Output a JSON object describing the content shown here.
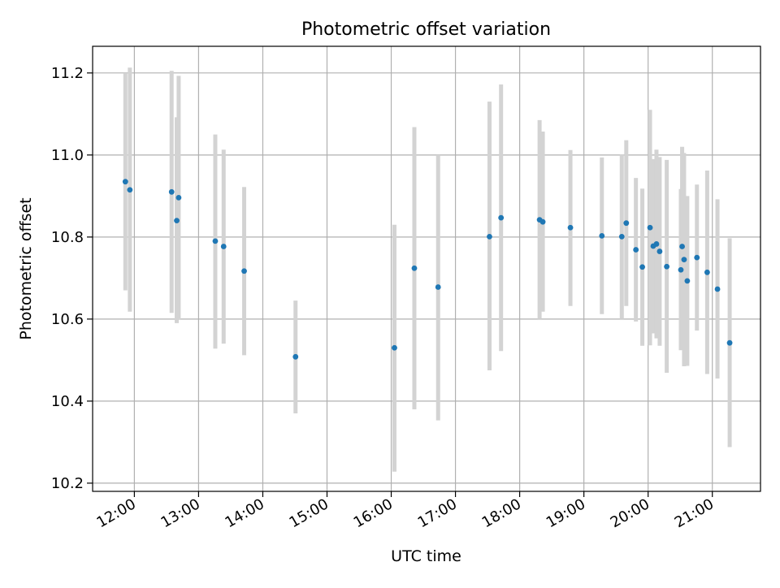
{
  "chart_data": {
    "type": "scatter",
    "title": "Photometric offset variation",
    "xlabel": "UTC time",
    "ylabel": "Photometric offset",
    "x_unit": "hours",
    "xlim": [
      11.35,
      21.75
    ],
    "ylim": [
      10.18,
      11.265
    ],
    "x_ticks": [
      {
        "value": 12,
        "label": "12:00"
      },
      {
        "value": 13,
        "label": "13:00"
      },
      {
        "value": 14,
        "label": "14:00"
      },
      {
        "value": 15,
        "label": "15:00"
      },
      {
        "value": 16,
        "label": "16:00"
      },
      {
        "value": 17,
        "label": "17:00"
      },
      {
        "value": 18,
        "label": "18:00"
      },
      {
        "value": 19,
        "label": "19:00"
      },
      {
        "value": 20,
        "label": "20:00"
      },
      {
        "value": 21,
        "label": "21:00"
      }
    ],
    "y_ticks": [
      {
        "value": 10.2,
        "label": "10.2"
      },
      {
        "value": 10.4,
        "label": "10.4"
      },
      {
        "value": 10.6,
        "label": "10.6"
      },
      {
        "value": 10.8,
        "label": "10.8"
      },
      {
        "value": 11.0,
        "label": "11.0"
      },
      {
        "value": 11.2,
        "label": "11.2"
      }
    ],
    "grid": true,
    "point_color": "#1f77b4",
    "errorbar_color": "#d3d3d3",
    "points": [
      {
        "x": 11.86,
        "y": 10.935,
        "err_low": 10.67,
        "err_high": 11.2
      },
      {
        "x": 11.93,
        "y": 10.915,
        "err_low": 10.618,
        "err_high": 11.213
      },
      {
        "x": 12.58,
        "y": 10.91,
        "err_low": 10.615,
        "err_high": 11.205
      },
      {
        "x": 12.66,
        "y": 10.84,
        "err_low": 10.59,
        "err_high": 11.092
      },
      {
        "x": 12.69,
        "y": 10.896,
        "err_low": 10.598,
        "err_high": 11.193
      },
      {
        "x": 13.26,
        "y": 10.79,
        "err_low": 10.528,
        "err_high": 11.05
      },
      {
        "x": 13.39,
        "y": 10.777,
        "err_low": 10.54,
        "err_high": 11.013
      },
      {
        "x": 13.71,
        "y": 10.717,
        "err_low": 10.512,
        "err_high": 10.922
      },
      {
        "x": 14.51,
        "y": 10.508,
        "err_low": 10.37,
        "err_high": 10.645
      },
      {
        "x": 16.05,
        "y": 10.53,
        "err_low": 10.228,
        "err_high": 10.83
      },
      {
        "x": 16.36,
        "y": 10.724,
        "err_low": 10.38,
        "err_high": 11.068
      },
      {
        "x": 16.73,
        "y": 10.678,
        "err_low": 10.353,
        "err_high": 11.0
      },
      {
        "x": 17.53,
        "y": 10.801,
        "err_low": 10.475,
        "err_high": 11.13
      },
      {
        "x": 17.71,
        "y": 10.847,
        "err_low": 10.522,
        "err_high": 11.172
      },
      {
        "x": 18.31,
        "y": 10.842,
        "err_low": 10.6,
        "err_high": 11.085
      },
      {
        "x": 18.36,
        "y": 10.837,
        "err_low": 10.618,
        "err_high": 11.057
      },
      {
        "x": 18.79,
        "y": 10.823,
        "err_low": 10.632,
        "err_high": 11.012
      },
      {
        "x": 19.28,
        "y": 10.803,
        "err_low": 10.612,
        "err_high": 10.994
      },
      {
        "x": 19.59,
        "y": 10.801,
        "err_low": 10.6,
        "err_high": 11.002
      },
      {
        "x": 19.66,
        "y": 10.834,
        "err_low": 10.632,
        "err_high": 11.036
      },
      {
        "x": 19.81,
        "y": 10.769,
        "err_low": 10.594,
        "err_high": 10.944
      },
      {
        "x": 19.91,
        "y": 10.727,
        "err_low": 10.535,
        "err_high": 10.918
      },
      {
        "x": 20.03,
        "y": 10.823,
        "err_low": 10.536,
        "err_high": 11.11
      },
      {
        "x": 20.08,
        "y": 10.778,
        "err_low": 10.565,
        "err_high": 10.99
      },
      {
        "x": 20.13,
        "y": 10.783,
        "err_low": 10.553,
        "err_high": 11.013
      },
      {
        "x": 20.18,
        "y": 10.765,
        "err_low": 10.535,
        "err_high": 10.995
      },
      {
        "x": 20.29,
        "y": 10.728,
        "err_low": 10.469,
        "err_high": 10.988
      },
      {
        "x": 20.51,
        "y": 10.72,
        "err_low": 10.524,
        "err_high": 10.917
      },
      {
        "x": 20.53,
        "y": 10.777,
        "err_low": 10.535,
        "err_high": 11.02
      },
      {
        "x": 20.56,
        "y": 10.745,
        "err_low": 10.485,
        "err_high": 11.005
      },
      {
        "x": 20.61,
        "y": 10.693,
        "err_low": 10.486,
        "err_high": 10.9
      },
      {
        "x": 20.76,
        "y": 10.75,
        "err_low": 10.572,
        "err_high": 10.928
      },
      {
        "x": 20.92,
        "y": 10.714,
        "err_low": 10.466,
        "err_high": 10.962
      },
      {
        "x": 21.08,
        "y": 10.673,
        "err_low": 10.455,
        "err_high": 10.892
      },
      {
        "x": 21.27,
        "y": 10.542,
        "err_low": 10.288,
        "err_high": 10.797
      }
    ]
  }
}
